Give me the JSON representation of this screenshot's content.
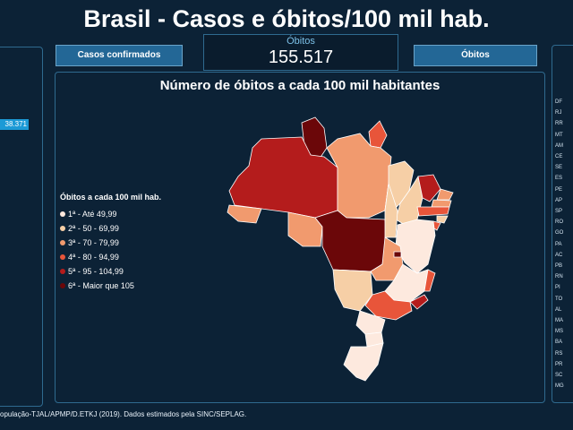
{
  "header": {
    "title": "Brasil - Casos e óbitos/100 mil hab."
  },
  "left_panel": {
    "value": "38.371"
  },
  "buttons": {
    "casos": "Casos confirmados",
    "obitos": "Óbitos"
  },
  "kpi": {
    "label": "Óbitos",
    "value": "155.517"
  },
  "map": {
    "title": "Número de óbitos a cada 100 mil habitantes",
    "legend_title": "Óbitos a cada 100 mil hab.",
    "legend": [
      {
        "label": "1ª - Até 49,99",
        "color": "#fde9de"
      },
      {
        "label": "2ª - 50 - 69,99",
        "color": "#f6cfa6"
      },
      {
        "label": "3ª - 70 - 79,99",
        "color": "#f19a6e"
      },
      {
        "label": "4ª - 80 - 94,99",
        "color": "#e8553a"
      },
      {
        "label": "5ª - 95 - 104,99",
        "color": "#b41c1c"
      },
      {
        "label": "6ª - Maior que 105",
        "color": "#6b0709"
      }
    ]
  },
  "state_list": [
    "DF",
    "RJ",
    "RR",
    "MT",
    "AM",
    "CE",
    "SE",
    "ES",
    "PE",
    "AP",
    "SP",
    "RO",
    "GO",
    "PA",
    "AC",
    "PB",
    "RN",
    "PI",
    "TO",
    "AL",
    "MA",
    "MS",
    "BA",
    "RS",
    "PR",
    "SC",
    "MG"
  ],
  "footer": {
    "text": "opulação-TJAL/APMP/D.ETKJ (2019). Dados estimados pela SINC/SEPLAG."
  }
}
